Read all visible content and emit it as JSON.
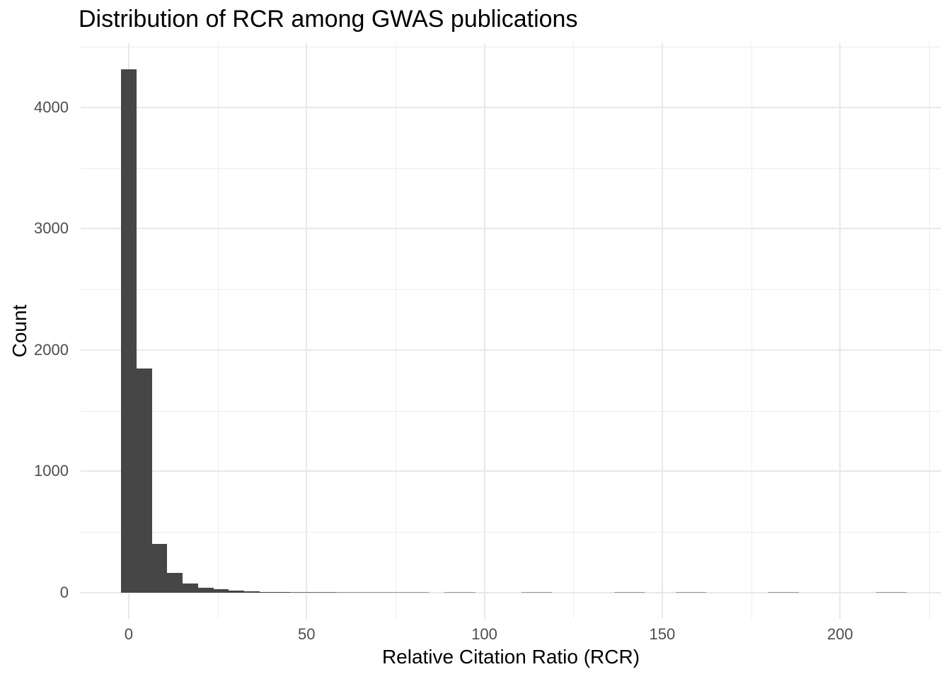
{
  "chart_data": {
    "type": "bar",
    "subtype": "histogram",
    "title": "Distribution of RCR among GWAS publications",
    "xlabel": "Relative Citation Ratio (RCR)",
    "ylabel": "Count",
    "x_ticks": [
      0,
      50,
      100,
      150,
      200
    ],
    "x_minor_ticks": [
      25,
      75,
      125,
      175,
      225
    ],
    "y_ticks": [
      0,
      1000,
      2000,
      3000,
      4000
    ],
    "y_minor_ticks": [
      500,
      1500,
      2500,
      3500,
      4500
    ],
    "x_range": [
      -13.5,
      228.4
    ],
    "y_range": [
      -215.7,
      4530
    ],
    "bin_width": 4.33,
    "bin_centers": [
      0.0,
      4.33,
      8.66,
      12.99,
      17.32,
      21.65,
      25.98,
      30.31,
      34.64,
      38.97,
      43.3,
      47.63,
      51.96,
      56.29,
      60.62,
      64.95,
      69.28,
      73.61,
      77.94,
      82.27,
      86.6,
      90.93,
      95.26,
      99.59,
      103.92,
      108.25,
      112.58,
      116.91,
      121.24,
      125.57,
      129.9,
      134.23,
      138.56,
      142.89,
      147.22,
      151.55,
      155.88,
      160.21,
      164.54,
      168.87,
      173.2,
      177.53,
      181.86,
      186.19,
      190.52,
      194.85,
      199.18,
      203.51,
      207.84,
      212.17,
      216.5
    ],
    "counts": [
      4314,
      1846,
      401,
      163,
      76,
      41,
      27,
      18,
      12,
      8,
      6,
      4,
      3,
      3,
      2,
      2,
      2,
      1,
      1,
      1,
      0,
      1,
      2,
      0,
      0,
      0,
      1,
      1,
      0,
      0,
      0,
      0,
      1,
      1,
      0,
      0,
      1,
      1,
      0,
      0,
      0,
      0,
      1,
      1,
      0,
      0,
      0,
      0,
      0,
      1,
      1
    ],
    "grid": true,
    "legend": false,
    "colors": {
      "bar": "#464646",
      "grid_major": "#e8e8e8",
      "grid_minor": "#ededed",
      "tick_text": "#4d4d4d",
      "title_text": "#000000",
      "background": "#ffffff"
    }
  }
}
